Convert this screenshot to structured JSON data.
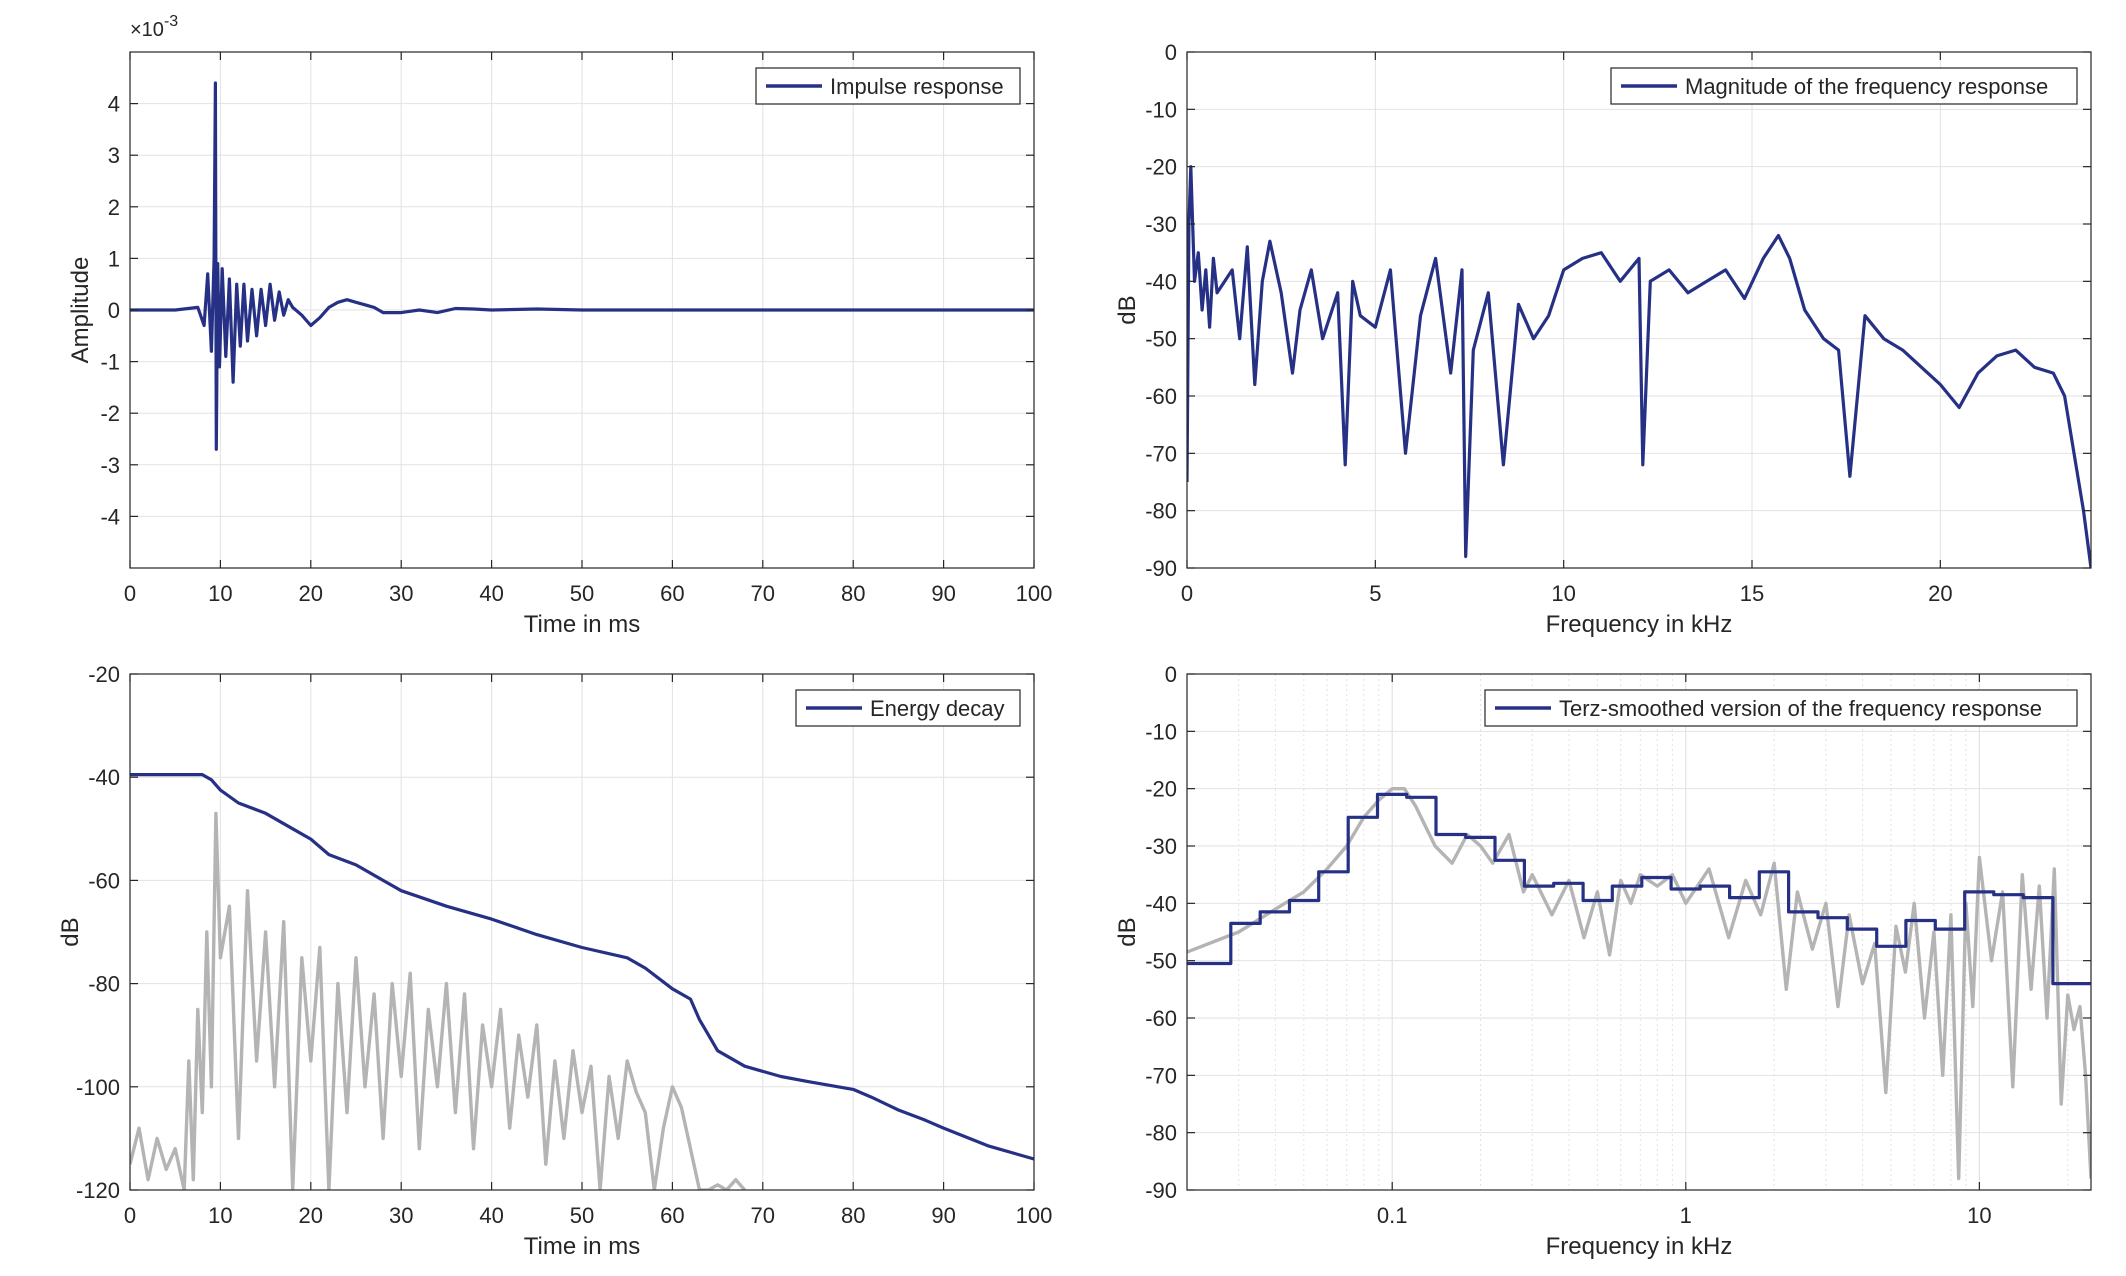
{
  "figure": {
    "colors": {
      "primary": "#263185",
      "secondary": "#b4b4b4",
      "grid": "#e2e2e2",
      "axes": "#262626"
    }
  },
  "chart_data": [
    {
      "type": "line",
      "xlabel": "Time in ms",
      "ylabel": "Amplitude",
      "xlim": [
        0,
        100
      ],
      "ylim": [
        -5,
        5
      ],
      "xticks": [
        0,
        10,
        20,
        30,
        40,
        50,
        60,
        70,
        80,
        90,
        100
      ],
      "yticks": [
        -4,
        -3,
        -2,
        -1,
        0,
        1,
        2,
        3,
        4
      ],
      "exponent_label": "×10",
      "exponent_power": "-3",
      "grid": true,
      "legend_position": "top-right",
      "series": [
        {
          "name": "Impulse response",
          "color": "#263185",
          "x": [
            0,
            5,
            7.5,
            8.2,
            8.6,
            9.0,
            9.3,
            9.45,
            9.55,
            9.7,
            9.9,
            10.2,
            10.6,
            11.0,
            11.4,
            11.8,
            12.2,
            12.6,
            13.0,
            13.5,
            14.0,
            14.5,
            15.0,
            15.5,
            16.0,
            16.5,
            17.0,
            17.5,
            18.0,
            19.0,
            20.0,
            21.0,
            22.0,
            23.0,
            24.0,
            25.0,
            26.0,
            27.0,
            28.0,
            30.0,
            32.0,
            34.0,
            36.0,
            38.0,
            40.0,
            45.0,
            50.0,
            60.0,
            70.0,
            80.0,
            90.0,
            100.0
          ],
          "values": [
            0,
            0,
            0.05,
            -0.3,
            0.7,
            -0.8,
            1.0,
            4.4,
            -2.7,
            0.9,
            -1.1,
            0.8,
            -0.9,
            0.6,
            -1.4,
            0.5,
            -0.7,
            0.5,
            -0.6,
            0.4,
            -0.5,
            0.4,
            -0.3,
            0.5,
            -0.2,
            0.35,
            -0.1,
            0.2,
            0.05,
            -0.1,
            -0.3,
            -0.15,
            0.05,
            0.15,
            0.2,
            0.15,
            0.1,
            0.05,
            -0.05,
            -0.05,
            0.0,
            -0.05,
            0.03,
            0.02,
            0.0,
            0.02,
            0.0,
            0.0,
            0.0,
            0.0,
            0.0,
            0.0
          ]
        }
      ]
    },
    {
      "type": "line",
      "xlabel": "Frequency in kHz",
      "ylabel": "dB",
      "xlim": [
        0,
        24
      ],
      "ylim": [
        -90,
        0
      ],
      "xticks": [
        0,
        5,
        10,
        15,
        20
      ],
      "yticks": [
        0,
        -10,
        -20,
        -30,
        -40,
        -50,
        -60,
        -70,
        -80,
        -90
      ],
      "grid": true,
      "legend_position": "top-right",
      "series": [
        {
          "name": "Magnitude of the frequency response",
          "color": "#263185",
          "x": [
            0,
            0.05,
            0.1,
            0.2,
            0.3,
            0.4,
            0.5,
            0.6,
            0.7,
            0.8,
            1.0,
            1.2,
            1.4,
            1.6,
            1.8,
            2.0,
            2.2,
            2.5,
            2.8,
            3.0,
            3.3,
            3.6,
            4.0,
            4.2,
            4.4,
            4.6,
            5.0,
            5.4,
            5.8,
            6.2,
            6.6,
            7.0,
            7.3,
            7.4,
            7.6,
            8.0,
            8.4,
            8.8,
            9.2,
            9.6,
            10.0,
            10.5,
            11.0,
            11.5,
            12.0,
            12.1,
            12.3,
            12.8,
            13.3,
            13.8,
            14.3,
            14.8,
            15.3,
            15.7,
            16.0,
            16.4,
            16.9,
            17.3,
            17.6,
            18.0,
            18.5,
            19.0,
            19.5,
            20.0,
            20.5,
            21.0,
            21.5,
            22.0,
            22.5,
            23.0,
            23.3,
            23.6,
            23.8,
            24.0
          ],
          "values": [
            -75,
            -30,
            -20,
            -40,
            -35,
            -45,
            -38,
            -48,
            -36,
            -42,
            -40,
            -38,
            -50,
            -34,
            -58,
            -40,
            -33,
            -42,
            -56,
            -45,
            -38,
            -50,
            -42,
            -72,
            -40,
            -46,
            -48,
            -38,
            -70,
            -46,
            -36,
            -56,
            -38,
            -88,
            -52,
            -42,
            -72,
            -44,
            -50,
            -46,
            -38,
            -36,
            -35,
            -40,
            -36,
            -72,
            -40,
            -38,
            -42,
            -40,
            -38,
            -43,
            -36,
            -32,
            -36,
            -45,
            -50,
            -52,
            -74,
            -46,
            -50,
            -52,
            -55,
            -58,
            -62,
            -56,
            -53,
            -52,
            -55,
            -56,
            -60,
            -72,
            -80,
            -90
          ]
        }
      ]
    },
    {
      "type": "line",
      "xlabel": "Time in ms",
      "ylabel": "dB",
      "xlim": [
        0,
        100
      ],
      "ylim": [
        -120,
        -20
      ],
      "xticks": [
        0,
        10,
        20,
        30,
        40,
        50,
        60,
        70,
        80,
        90,
        100
      ],
      "yticks": [
        -20,
        -40,
        -60,
        -80,
        -100,
        -120
      ],
      "grid": true,
      "legend_position": "top-right",
      "series": [
        {
          "name": "Energy decay",
          "color": "#263185",
          "x": [
            0,
            5,
            8,
            9,
            10,
            12,
            15,
            18,
            20,
            22,
            25,
            28,
            30,
            35,
            40,
            45,
            50,
            55,
            57,
            60,
            62,
            63,
            64,
            65,
            68,
            72,
            75,
            80,
            82,
            85,
            88,
            90,
            95,
            100
          ],
          "values": [
            -39.5,
            -39.5,
            -39.5,
            -40.5,
            -42.5,
            -45,
            -47,
            -50,
            -52,
            -55,
            -57,
            -60,
            -62,
            -65,
            -67.5,
            -70.5,
            -73,
            -75,
            -77,
            -81,
            -83,
            -87,
            -90,
            -93,
            -96,
            -98,
            -99,
            -100.5,
            -102,
            -104.5,
            -106.5,
            -108,
            -111.5,
            -114
          ]
        },
        {
          "name": "",
          "color": "#b4b4b4",
          "x": [
            0,
            1,
            2,
            3,
            4,
            5,
            6,
            6.5,
            7,
            7.5,
            8,
            8.5,
            9,
            9.5,
            10,
            11,
            12,
            13,
            14,
            15,
            16,
            17,
            18,
            19,
            20,
            21,
            22,
            23,
            24,
            25,
            26,
            27,
            28,
            29,
            30,
            31,
            32,
            33,
            34,
            35,
            36,
            37,
            38,
            39,
            40,
            41,
            42,
            43,
            44,
            45,
            46,
            47,
            48,
            49,
            50,
            51,
            52,
            53,
            54,
            55,
            56,
            57,
            58,
            59,
            60,
            61,
            62,
            63,
            64,
            65,
            66,
            67,
            68
          ],
          "values": [
            -115,
            -108,
            -118,
            -110,
            -116,
            -112,
            -120,
            -95,
            -118,
            -85,
            -105,
            -70,
            -100,
            -47,
            -75,
            -65,
            -110,
            -62,
            -95,
            -70,
            -100,
            -68,
            -120,
            -75,
            -95,
            -73,
            -120,
            -80,
            -105,
            -75,
            -100,
            -82,
            -110,
            -80,
            -98,
            -78,
            -112,
            -85,
            -100,
            -80,
            -105,
            -82,
            -112,
            -88,
            -100,
            -85,
            -108,
            -90,
            -102,
            -88,
            -115,
            -95,
            -110,
            -93,
            -105,
            -96,
            -120,
            -98,
            -110,
            -95,
            -101,
            -105,
            -120,
            -108,
            -100,
            -104,
            -112,
            -120,
            -120,
            -119,
            -120,
            -118,
            -120
          ]
        }
      ]
    },
    {
      "type": "line",
      "xlabel": "Frequency in kHz",
      "ylabel": "dB",
      "xscale": "log",
      "xlim": [
        0.02,
        24
      ],
      "ylim": [
        -90,
        0
      ],
      "xticks": [
        0.1,
        1,
        10
      ],
      "xticklabels": [
        "0.1",
        "1",
        "10"
      ],
      "yticks": [
        0,
        -10,
        -20,
        -30,
        -40,
        -50,
        -60,
        -70,
        -80,
        -90
      ],
      "grid": true,
      "legend_position": "top-right",
      "series": [
        {
          "name": "Terz-smoothed version of the frequency response",
          "color": "#263185",
          "x": [
            0.02,
            0.0282,
            0.0282,
            0.0355,
            0.0355,
            0.0447,
            0.0447,
            0.0562,
            0.0562,
            0.0708,
            0.0708,
            0.0891,
            0.0891,
            0.112,
            0.112,
            0.141,
            0.141,
            0.178,
            0.178,
            0.224,
            0.224,
            0.282,
            0.282,
            0.355,
            0.355,
            0.447,
            0.447,
            0.562,
            0.562,
            0.708,
            0.708,
            0.891,
            0.891,
            1.12,
            1.12,
            1.41,
            1.41,
            1.78,
            1.78,
            2.24,
            2.24,
            2.82,
            2.82,
            3.55,
            3.55,
            4.47,
            4.47,
            5.62,
            5.62,
            7.08,
            7.08,
            8.91,
            8.91,
            11.2,
            11.2,
            14.1,
            14.1,
            17.8,
            17.8,
            24
          ],
          "values": [
            -50.5,
            -50.5,
            -43.5,
            -43.5,
            -41.5,
            -41.5,
            -39.5,
            -39.5,
            -34.5,
            -34.5,
            -25,
            -25,
            -21,
            -21,
            -21.5,
            -21.5,
            -28,
            -28,
            -28.5,
            -28.5,
            -32.5,
            -32.5,
            -37,
            -37,
            -36.5,
            -36.5,
            -39.5,
            -39.5,
            -37,
            -37,
            -35.5,
            -35.5,
            -37.5,
            -37.5,
            -37,
            -37,
            -39,
            -39,
            -34.5,
            -34.5,
            -41.5,
            -41.5,
            -42.5,
            -42.5,
            -44.5,
            -44.5,
            -47.5,
            -47.5,
            -43,
            -43,
            -44.5,
            -44.5,
            -38,
            -38,
            -38.5,
            -38.5,
            -39,
            -39,
            -54,
            -54
          ]
        },
        {
          "name": "",
          "color": "#b4b4b4",
          "x": [
            0.02,
            0.03,
            0.04,
            0.05,
            0.06,
            0.07,
            0.08,
            0.09,
            0.1,
            0.11,
            0.12,
            0.14,
            0.16,
            0.18,
            0.2,
            0.22,
            0.25,
            0.28,
            0.3,
            0.35,
            0.4,
            0.45,
            0.5,
            0.55,
            0.6,
            0.65,
            0.7,
            0.8,
            0.9,
            1.0,
            1.2,
            1.4,
            1.6,
            1.8,
            2.0,
            2.2,
            2.4,
            2.7,
            3.0,
            3.3,
            3.6,
            4.0,
            4.4,
            4.8,
            5.2,
            5.6,
            6.0,
            6.5,
            7.0,
            7.5,
            8.0,
            8.5,
            9.0,
            9.5,
            10.0,
            11.0,
            12.0,
            13.0,
            14.0,
            15.0,
            16.0,
            17.0,
            18.0,
            19.0,
            20.0,
            21.0,
            22.0,
            23.0,
            24.0
          ],
          "values": [
            -48.5,
            -45,
            -41,
            -38,
            -34,
            -30,
            -25,
            -22,
            -20,
            -20,
            -23,
            -30,
            -33,
            -28,
            -30,
            -33,
            -28,
            -38,
            -35,
            -42,
            -36,
            -46,
            -38,
            -49,
            -36,
            -40,
            -35,
            -37,
            -35,
            -40,
            -34,
            -46,
            -36,
            -42,
            -33,
            -55,
            -38,
            -48,
            -40,
            -58,
            -42,
            -54,
            -47,
            -73,
            -44,
            -52,
            -40,
            -60,
            -45,
            -70,
            -42,
            -88,
            -40,
            -58,
            -32,
            -50,
            -38,
            -72,
            -35,
            -55,
            -37,
            -60,
            -34,
            -75,
            -56,
            -62,
            -58,
            -70,
            -88
          ]
        }
      ]
    }
  ]
}
